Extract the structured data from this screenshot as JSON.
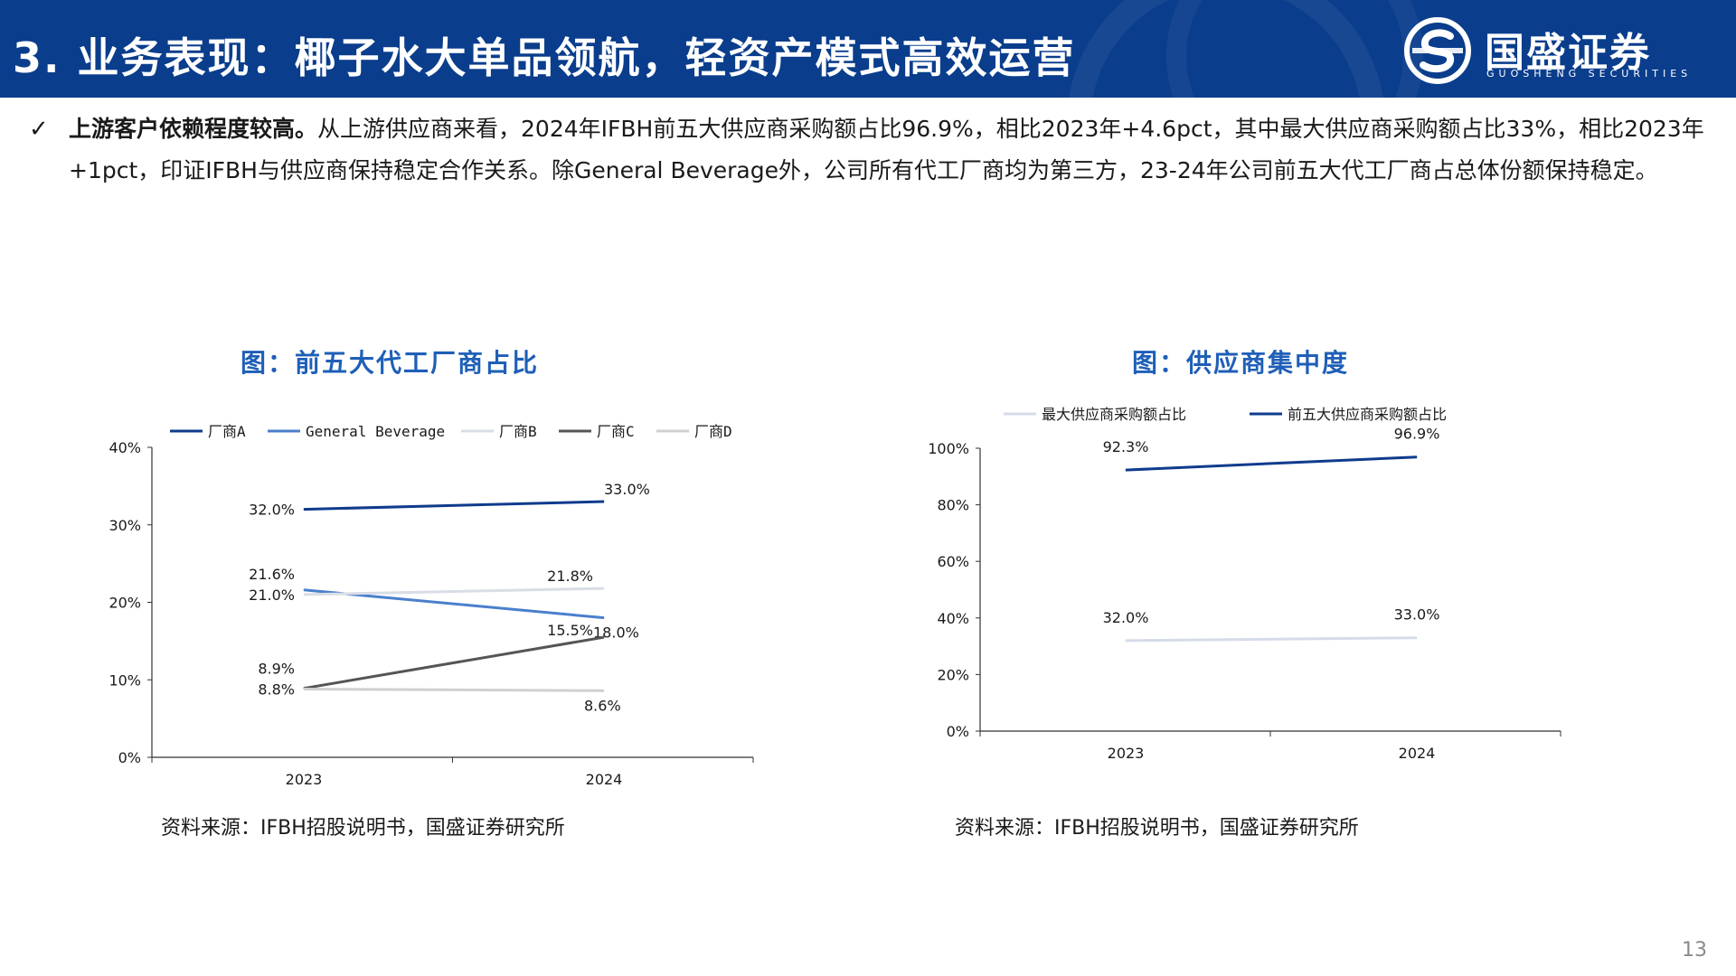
{
  "header": {
    "title": "3. 业务表现：椰子水大单品领航，轻资产模式高效运营",
    "logo_cn": "国盛证券",
    "logo_en": "GUOSHENG SECURITIES"
  },
  "bullet": {
    "bold_text": "上游客户依赖程度较高。",
    "text": "从上游供应商来看，2024年IFBH前五大供应商采购额占比96.9%，相比2023年+4.6pct，其中最大供应商采购额占比33%，相比2023年+1pct，印证IFBH与供应商保持稳定合作关系。除General Beverage外，公司所有代工厂商均为第三方，23-24年公司前五大代工厂商占总体份额保持稳定。"
  },
  "chart_left": {
    "title": "图：前五大代工厂商占比",
    "source": "资料来源：IFBH招股说明书，国盛证券研究所"
  },
  "chart_right": {
    "title": "图：供应商集中度",
    "source": "资料来源：IFBH招股说明书，国盛证券研究所"
  },
  "page_number": "13",
  "colors": {
    "header_bg": "#0a3d8c",
    "title_blue": "#1f5fb8"
  },
  "chart_data": [
    {
      "type": "line",
      "x": [
        "2023",
        "2024"
      ],
      "ylim": [
        0,
        40
      ],
      "yticks": [
        "0%",
        "10%",
        "20%",
        "30%",
        "40%"
      ],
      "legend_position": "top",
      "series": [
        {
          "name": "厂商A",
          "values": [
            32.0,
            33.0
          ],
          "labels": [
            "32.0%",
            "33.0%"
          ],
          "color": "#0f3b8c"
        },
        {
          "name": "General Beverage",
          "values": [
            21.6,
            18.0
          ],
          "labels": [
            "21.6%",
            "18.0%"
          ],
          "color": "#4a7fcc"
        },
        {
          "name": "厂商B",
          "values": [
            21.0,
            21.8
          ],
          "labels": [
            "21.0%",
            "21.8%"
          ],
          "color": "#d9dde6"
        },
        {
          "name": "厂商C",
          "values": [
            8.9,
            15.5
          ],
          "labels": [
            "8.9%",
            "15.5%"
          ],
          "color": "#555555"
        },
        {
          "name": "厂商D",
          "values": [
            8.8,
            8.6
          ],
          "labels": [
            "8.8%",
            "8.6%"
          ],
          "color": "#d0d0d0"
        }
      ]
    },
    {
      "type": "line",
      "x": [
        "2023",
        "2024"
      ],
      "ylim": [
        0,
        100
      ],
      "yticks": [
        "0%",
        "20%",
        "40%",
        "60%",
        "80%",
        "100%"
      ],
      "legend_position": "top",
      "series": [
        {
          "name": "最大供应商采购额占比",
          "values": [
            32.0,
            33.0
          ],
          "labels": [
            "32.0%",
            "33.0%"
          ],
          "color": "#d5dbe8"
        },
        {
          "name": "前五大供应商采购额占比",
          "values": [
            92.3,
            96.9
          ],
          "labels": [
            "92.3%",
            "96.9%"
          ],
          "color": "#0f3b8c"
        }
      ]
    }
  ]
}
